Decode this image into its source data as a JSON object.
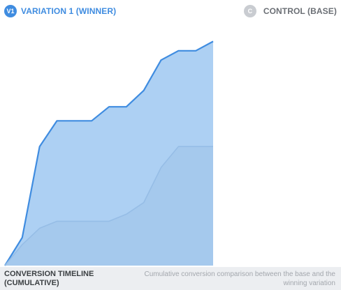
{
  "legend": {
    "variation": {
      "badge": "V1",
      "label": "VARIATION 1 (WINNER)",
      "color": "#3f8ce0"
    },
    "control": {
      "badge": "C",
      "label": "CONTROL (BASE)",
      "color": "#c9ccd1"
    }
  },
  "footer": {
    "title": "CONVERSION TIMELINE (CUMULATIVE)",
    "description": "Cumulative conversion comparison between the base and the winning variation"
  },
  "chart_data": {
    "type": "area",
    "x": [
      0,
      1,
      2,
      3,
      4,
      5,
      6,
      7,
      8,
      9,
      10,
      11,
      12
    ],
    "ylim": [
      0,
      100
    ],
    "grid": false,
    "legend_position": "top",
    "series": [
      {
        "name": "VARIATION 1 (WINNER)",
        "color": "#3f8ce0",
        "fill": "#a9cdf2",
        "values": [
          0,
          12,
          51,
          62,
          62,
          62,
          68,
          68,
          75,
          88,
          92,
          92,
          96
        ]
      },
      {
        "name": "CONTROL (BASE)",
        "color": "#96bde6",
        "fill": "#9fc2e7",
        "values": [
          0,
          9,
          16,
          19,
          19,
          19,
          19,
          22,
          27,
          42,
          51,
          51,
          51
        ]
      }
    ]
  }
}
